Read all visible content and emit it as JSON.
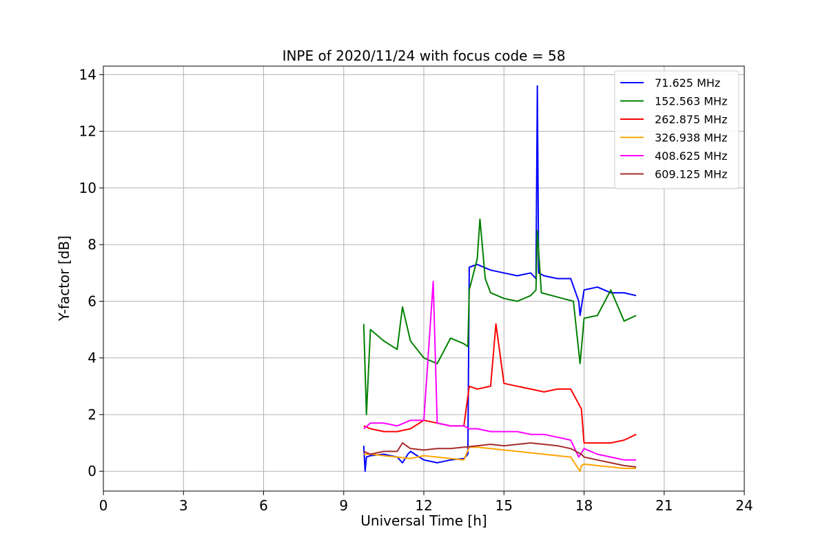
{
  "chart_data": {
    "type": "line",
    "title": "INPE of 2020/11/24 with focus code = 58",
    "xlabel": "Universal Time [h]",
    "ylabel": "Y-factor [dB]",
    "xlim": [
      0,
      24
    ],
    "ylim": [
      -0.7,
      14.3
    ],
    "x_ticks": [
      0,
      3,
      6,
      9,
      12,
      15,
      18,
      21,
      24
    ],
    "y_ticks": [
      0,
      2,
      4,
      6,
      8,
      10,
      12,
      14
    ],
    "grid": true,
    "legend_position": "top-right",
    "series": [
      {
        "name": " 71.625 MHz",
        "color": "#0000ff",
        "x": [
          9.75,
          9.8,
          9.85,
          10.0,
          10.5,
          11.0,
          11.2,
          11.4,
          11.5,
          12.0,
          12.5,
          13.0,
          13.5,
          13.65,
          13.7,
          14.0,
          14.5,
          15.0,
          15.5,
          16.0,
          16.2,
          16.25,
          16.3,
          16.5,
          17.0,
          17.5,
          17.8,
          17.85,
          18.0,
          18.5,
          19.0,
          19.5,
          19.95
        ],
        "values": [
          0.9,
          0.0,
          0.5,
          0.55,
          0.6,
          0.5,
          0.3,
          0.6,
          0.7,
          0.4,
          0.3,
          0.4,
          0.45,
          0.6,
          7.2,
          7.3,
          7.1,
          7.0,
          6.9,
          7.0,
          6.8,
          13.6,
          7.0,
          6.9,
          6.8,
          6.8,
          6.0,
          5.5,
          6.4,
          6.5,
          6.3,
          6.3,
          6.2
        ]
      },
      {
        "name": "152.563 MHz",
        "color": "#008000",
        "x": [
          9.75,
          9.85,
          10.0,
          10.5,
          11.0,
          11.2,
          11.5,
          12.0,
          12.5,
          13.0,
          13.5,
          13.65,
          13.7,
          14.0,
          14.1,
          14.3,
          14.5,
          15.0,
          15.5,
          16.0,
          16.2,
          16.25,
          16.4,
          16.8,
          17.2,
          17.6,
          17.85,
          18.0,
          18.5,
          19.0,
          19.5,
          19.95
        ],
        "values": [
          5.2,
          2.0,
          5.0,
          4.6,
          4.3,
          5.8,
          4.6,
          4.0,
          3.8,
          4.7,
          4.5,
          4.4,
          6.4,
          7.5,
          8.9,
          6.8,
          6.3,
          6.1,
          6.0,
          6.2,
          6.4,
          8.5,
          6.3,
          6.2,
          6.1,
          6.0,
          3.8,
          5.4,
          5.5,
          6.4,
          5.3,
          5.5
        ]
      },
      {
        "name": "262.875 MHz",
        "color": "#ff0000",
        "x": [
          9.75,
          10.0,
          10.5,
          11.0,
          11.5,
          12.0,
          12.5,
          13.0,
          13.5,
          13.7,
          14.0,
          14.5,
          14.7,
          15.0,
          15.5,
          16.0,
          16.5,
          17.0,
          17.5,
          17.9,
          18.0,
          18.5,
          19.0,
          19.5,
          19.95
        ],
        "values": [
          1.6,
          1.5,
          1.4,
          1.4,
          1.5,
          1.8,
          1.7,
          1.6,
          1.6,
          3.0,
          2.9,
          3.0,
          5.2,
          3.1,
          3.0,
          2.9,
          2.8,
          2.9,
          2.9,
          2.2,
          1.0,
          1.0,
          1.0,
          1.1,
          1.3
        ]
      },
      {
        "name": "326.938 MHz",
        "color": "#ffa500",
        "x": [
          9.75,
          10.0,
          10.5,
          11.0,
          11.5,
          12.0,
          12.5,
          13.0,
          13.5,
          13.7,
          14.0,
          14.5,
          15.0,
          15.5,
          16.0,
          16.5,
          17.0,
          17.5,
          17.85,
          17.9,
          18.0,
          18.5,
          19.0,
          19.5,
          19.95
        ],
        "values": [
          0.6,
          0.6,
          0.55,
          0.5,
          0.45,
          0.55,
          0.5,
          0.45,
          0.4,
          0.85,
          0.85,
          0.8,
          0.75,
          0.7,
          0.65,
          0.6,
          0.55,
          0.5,
          0.0,
          0.2,
          0.25,
          0.2,
          0.15,
          0.1,
          0.1
        ]
      },
      {
        "name": "408.625 MHz",
        "color": "#ff00ff",
        "x": [
          9.75,
          10.0,
          10.5,
          11.0,
          11.5,
          12.0,
          12.35,
          12.5,
          13.0,
          13.5,
          13.7,
          14.0,
          14.5,
          15.0,
          15.5,
          16.0,
          16.5,
          17.0,
          17.5,
          17.8,
          18.0,
          18.5,
          19.0,
          19.5,
          19.95
        ],
        "values": [
          1.5,
          1.7,
          1.7,
          1.6,
          1.8,
          1.8,
          6.7,
          1.7,
          1.6,
          1.6,
          1.5,
          1.5,
          1.4,
          1.4,
          1.4,
          1.3,
          1.3,
          1.2,
          1.1,
          0.5,
          0.8,
          0.6,
          0.5,
          0.4,
          0.4
        ]
      },
      {
        "name": "609.125 MHz",
        "color": "#a52a2a",
        "x": [
          9.75,
          10.0,
          10.5,
          11.0,
          11.2,
          11.5,
          12.0,
          12.5,
          13.0,
          13.5,
          14.0,
          14.5,
          15.0,
          15.5,
          16.0,
          16.5,
          17.0,
          17.5,
          17.9,
          18.0,
          18.5,
          19.0,
          19.5,
          19.95
        ],
        "values": [
          0.7,
          0.6,
          0.7,
          0.7,
          1.0,
          0.8,
          0.75,
          0.8,
          0.8,
          0.85,
          0.9,
          0.95,
          0.9,
          0.95,
          1.0,
          0.95,
          0.9,
          0.8,
          0.6,
          0.5,
          0.4,
          0.3,
          0.2,
          0.15
        ]
      }
    ]
  }
}
